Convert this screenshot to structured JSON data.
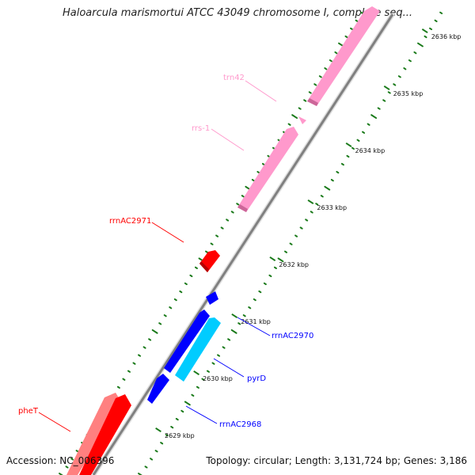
{
  "header": {
    "title": "Haloarcula marismortui ATCC 43049 chromosome I, complete seq..."
  },
  "footer": {
    "accession": "Accession: NC_006396",
    "summary": "Topology: circular; Length: 3,131,724 bp; Genes: 3,186"
  },
  "scale": {
    "unit": "kbp",
    "ticks": [
      {
        "value": 2629,
        "label": "2629 kbp"
      },
      {
        "value": 2630,
        "label": "2630 kbp"
      },
      {
        "value": 2631,
        "label": "2631 kbp"
      },
      {
        "value": 2632,
        "label": "2632 kbp"
      },
      {
        "value": 2633,
        "label": "2633 kbp"
      },
      {
        "value": 2634,
        "label": "2634 kbp"
      },
      {
        "value": 2635,
        "label": "2635 kbp"
      },
      {
        "value": 2636,
        "label": "2636 kbp"
      }
    ]
  },
  "features": [
    {
      "name": "pheT",
      "strand": "forward",
      "color": "#ff0000",
      "labeled": true
    },
    {
      "name": "rrnAC2971",
      "strand": "forward",
      "color": "#ff0000",
      "labeled": true
    },
    {
      "name": "rrs-1",
      "strand": "forward",
      "color": "#ff99cc",
      "labeled": true
    },
    {
      "name": "trn42",
      "strand": "forward",
      "color": "#ff99cc",
      "labeled": true
    },
    {
      "name": "rrnAC2968",
      "strand": "reverse",
      "color": "#0000ff",
      "labeled": true
    },
    {
      "name": "pyrD",
      "strand": "reverse",
      "color": "#00ccff",
      "labeled": true
    },
    {
      "name": "rrnAC2970",
      "strand": "reverse",
      "color": "#0000ff",
      "labeled": true
    }
  ],
  "colors": {
    "backbone": "#808080",
    "gc_ticks": "#1a7a1a",
    "rna": "#ff99cc",
    "cds_forward": "#ff0000",
    "cds_reverse": "#0000ff",
    "cds_reverse_alt": "#00ccff"
  }
}
